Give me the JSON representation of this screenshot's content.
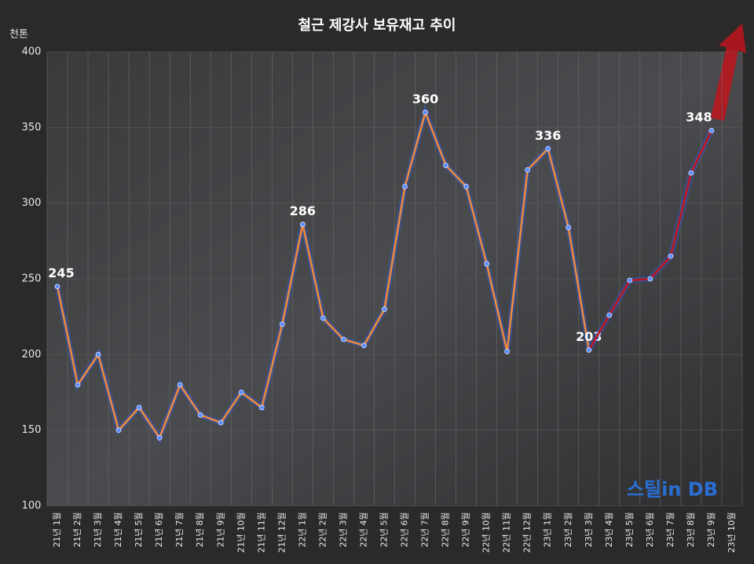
{
  "chart_data": {
    "type": "line",
    "title": "철근 제강사 보유재고 추이",
    "y_label": "천톤",
    "watermark": "스틸in DB",
    "categories": [
      "21년 1월",
      "21년 2월",
      "21년 3월",
      "21년 4월",
      "21년 5월",
      "21년 6월",
      "21년 7월",
      "21년 8월",
      "21년 9월",
      "21년 10월",
      "21년 11월",
      "21년 12월",
      "22년 1월",
      "22년 2월",
      "22년 3월",
      "22년 4월",
      "22년 5월",
      "22년 6월",
      "22년 7월",
      "22년 8월",
      "22년 9월",
      "22년 10월",
      "22년 11월",
      "22년 12월",
      "23년 1월",
      "23년 2월",
      "23년 3월",
      "23년 4월",
      "23년 5월",
      "23년 6월",
      "23년 7월",
      "23년 8월",
      "23년 9월",
      "23년 10월"
    ],
    "series": [
      {
        "color": "#f08a3c",
        "values": [
          245,
          180,
          200,
          150,
          165,
          145,
          180,
          160,
          155,
          175,
          165,
          220,
          286,
          224,
          210,
          206,
          230,
          311,
          360,
          325,
          311,
          260,
          202,
          322,
          336,
          284,
          203,
          null,
          null,
          null,
          null,
          null,
          null,
          null
        ],
        "value_labels": [
          "245",
          null,
          null,
          null,
          null,
          null,
          null,
          null,
          null,
          null,
          null,
          null,
          "286",
          null,
          null,
          null,
          null,
          null,
          "360",
          null,
          null,
          null,
          null,
          null,
          "336",
          null,
          "203",
          null,
          null,
          null,
          null,
          null,
          null,
          null
        ]
      },
      {
        "color": "#c0141c",
        "values": [
          null,
          null,
          null,
          null,
          null,
          null,
          null,
          null,
          null,
          null,
          null,
          null,
          null,
          null,
          null,
          null,
          null,
          null,
          null,
          null,
          null,
          null,
          null,
          null,
          null,
          null,
          203,
          226,
          249,
          250,
          265,
          320,
          348,
          null
        ],
        "value_labels": [
          null,
          null,
          null,
          null,
          null,
          null,
          null,
          null,
          null,
          null,
          null,
          null,
          null,
          null,
          null,
          null,
          null,
          null,
          null,
          null,
          null,
          null,
          null,
          null,
          null,
          null,
          null,
          null,
          null,
          null,
          null,
          null,
          "348",
          null
        ]
      }
    ],
    "ylim": [
      100,
      400
    ],
    "yticks": [
      100,
      150,
      200,
      250,
      300,
      350,
      400
    ],
    "grid": true
  }
}
